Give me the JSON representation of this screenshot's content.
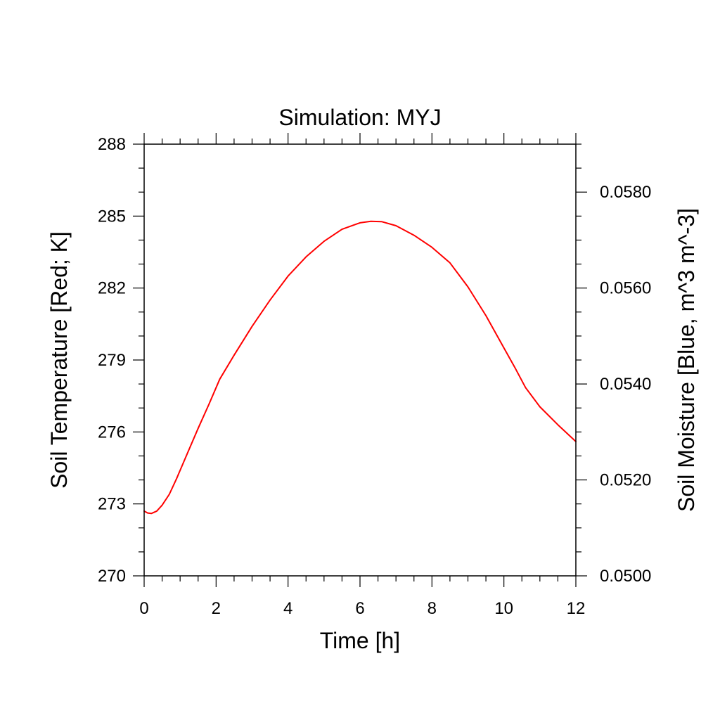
{
  "chart_data": {
    "type": "line",
    "title": "Simulation: MYJ",
    "xlabel": "Time [h]",
    "ylabel_left": "Soil Temperature [Red; K]",
    "ylabel_right": "Soil Moisture [Blue, m^3 m^-3]",
    "xlim": [
      0,
      12
    ],
    "ylim_left": [
      270,
      288
    ],
    "ylim_right": [
      0.05,
      0.059
    ],
    "x_ticks": [
      "0",
      "2",
      "4",
      "6",
      "8",
      "10",
      "12"
    ],
    "y_ticks_left": [
      "270",
      "273",
      "276",
      "279",
      "282",
      "285",
      "288"
    ],
    "y_ticks_right": [
      "0.0500",
      "0.0520",
      "0.0540",
      "0.0560",
      "0.0580"
    ],
    "grid": false,
    "series": [
      {
        "color": "#ff0000",
        "axis": "left",
        "x": [
          0,
          0.1,
          0.2,
          0.35,
          0.5,
          0.7,
          0.9,
          1.2,
          1.5,
          1.8,
          2.1,
          2.5,
          3.0,
          3.5,
          4.0,
          4.5,
          5.0,
          5.5,
          6.0,
          6.3,
          6.6,
          7.0,
          7.5,
          8.0,
          8.5,
          9.0,
          9.5,
          10.0,
          10.3,
          10.6,
          11.0,
          11.5,
          12.0
        ],
        "y": [
          272.7,
          272.62,
          272.6,
          272.7,
          272.95,
          273.4,
          274.05,
          275.1,
          276.15,
          277.15,
          278.2,
          279.2,
          280.4,
          281.5,
          282.5,
          283.3,
          283.95,
          284.45,
          284.72,
          284.78,
          284.77,
          284.6,
          284.2,
          283.7,
          283.05,
          282.05,
          280.85,
          279.5,
          278.7,
          277.85,
          277.05,
          276.3,
          275.6
        ]
      }
    ]
  }
}
